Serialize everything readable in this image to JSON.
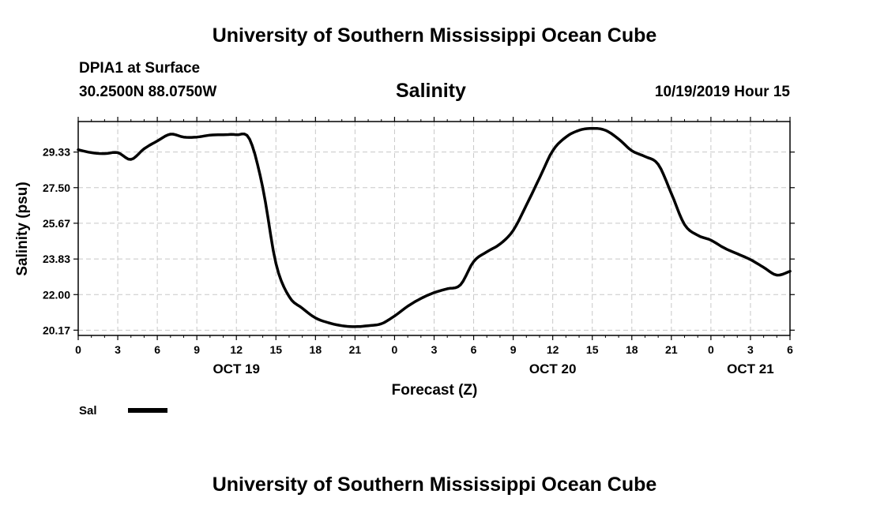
{
  "header": {
    "title": "University of Southern Mississippi Ocean Cube",
    "station": "DPIA1 at Surface",
    "coords": "30.2500N 88.0750W",
    "plot_title": "Salinity",
    "datetime": "10/19/2019 Hour 15"
  },
  "footer": {
    "title": "University of Southern Mississippi Ocean Cube"
  },
  "legend": {
    "label": "Sal"
  },
  "chart_data": {
    "type": "line",
    "xlabel": "Forecast (Z)",
    "ylabel": "Salinity (psu)",
    "xlim": [
      0,
      54
    ],
    "ylim": [
      19.9,
      30.9
    ],
    "grid": true,
    "legend_position": "bottom-left",
    "line_color": "#000000",
    "yticks": [
      20.17,
      22.0,
      23.83,
      25.67,
      27.5,
      29.33
    ],
    "ytick_labels": [
      "20.17",
      "22.00",
      "23.83",
      "25.67",
      "27.50",
      "29.33"
    ],
    "xticks": [
      0,
      3,
      6,
      9,
      12,
      15,
      18,
      21,
      24,
      27,
      30,
      33,
      36,
      39,
      42,
      45,
      48,
      51,
      54
    ],
    "xtick_labels": [
      "0",
      "3",
      "6",
      "9",
      "12",
      "15",
      "18",
      "21",
      "0",
      "3",
      "6",
      "9",
      "12",
      "15",
      "18",
      "21",
      "0",
      "3",
      "6"
    ],
    "date_labels": [
      {
        "x": 12,
        "label": "OCT 19"
      },
      {
        "x": 36,
        "label": "OCT 20"
      },
      {
        "x": 51,
        "label": "OCT 21"
      }
    ],
    "series": [
      {
        "name": "Sal",
        "x": [
          0,
          1,
          2,
          3,
          4,
          5,
          6,
          7,
          8,
          9,
          10,
          11,
          12,
          13,
          14,
          15,
          16,
          17,
          18,
          19,
          20,
          21,
          22,
          23,
          24,
          25,
          26,
          27,
          28,
          29,
          30,
          31,
          32,
          33,
          34,
          35,
          36,
          37,
          38,
          39,
          40,
          41,
          42,
          43,
          44,
          45,
          46,
          47,
          48,
          49,
          50,
          51,
          52,
          53,
          54
        ],
        "values": [
          29.45,
          29.3,
          29.25,
          29.3,
          28.95,
          29.5,
          29.9,
          30.25,
          30.1,
          30.1,
          30.2,
          30.22,
          30.22,
          30.0,
          27.5,
          23.6,
          21.9,
          21.3,
          20.8,
          20.55,
          20.4,
          20.35,
          20.4,
          20.5,
          20.9,
          21.4,
          21.8,
          22.1,
          22.3,
          22.5,
          23.7,
          24.2,
          24.6,
          25.3,
          26.6,
          28.0,
          29.4,
          30.1,
          30.45,
          30.55,
          30.45,
          30.0,
          29.4,
          29.1,
          28.7,
          27.2,
          25.6,
          25.05,
          24.8,
          24.4,
          24.1,
          23.8,
          23.4,
          23.0,
          23.2
        ]
      }
    ]
  }
}
